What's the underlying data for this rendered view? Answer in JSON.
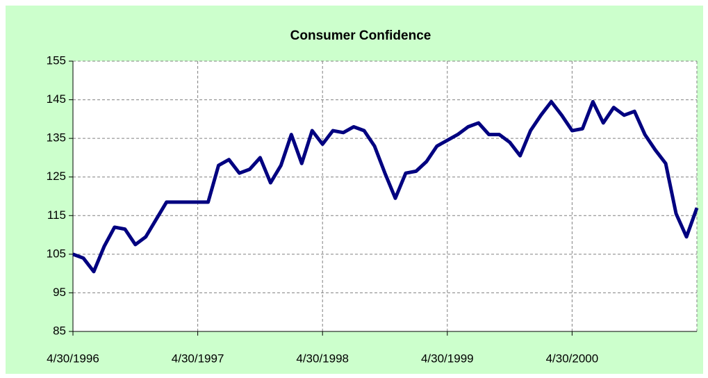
{
  "chart_data": {
    "type": "line",
    "title": "Consumer Confidence",
    "categories": [
      "4/30/1996",
      null,
      null,
      null,
      null,
      null,
      null,
      null,
      null,
      null,
      null,
      null,
      "4/30/1997",
      null,
      null,
      null,
      null,
      null,
      null,
      null,
      null,
      null,
      null,
      null,
      "4/30/1998",
      null,
      null,
      null,
      null,
      null,
      null,
      null,
      null,
      null,
      null,
      null,
      "4/30/1999",
      null,
      null,
      null,
      null,
      null,
      null,
      null,
      null,
      null,
      null,
      null,
      "4/30/2000",
      null,
      null,
      null,
      null,
      null,
      null,
      null,
      null,
      null,
      null,
      null,
      null
    ],
    "series": [
      {
        "name": "Consumer Confidence",
        "color": "#000080",
        "values": [
          105,
          104,
          100.5,
          107,
          112,
          111.5,
          107.5,
          109.5,
          114,
          118.5,
          118.5,
          118.5,
          118.5,
          118.5,
          128,
          129.5,
          126,
          127,
          130,
          123.5,
          128,
          136,
          128.5,
          137,
          133.5,
          137,
          136.5,
          138,
          137,
          133,
          126,
          119.5,
          126,
          126.5,
          129,
          133,
          134.5,
          136,
          138,
          139,
          136,
          136,
          134,
          130.5,
          137,
          141,
          144.5,
          141,
          137,
          137.5,
          144.5,
          139,
          143,
          141,
          142,
          136,
          132,
          128.5,
          115.5,
          109.5,
          117
        ]
      }
    ],
    "ylim": [
      85,
      155
    ],
    "yticks": [
      85,
      95,
      105,
      115,
      125,
      135,
      145,
      155
    ],
    "grid": true
  }
}
